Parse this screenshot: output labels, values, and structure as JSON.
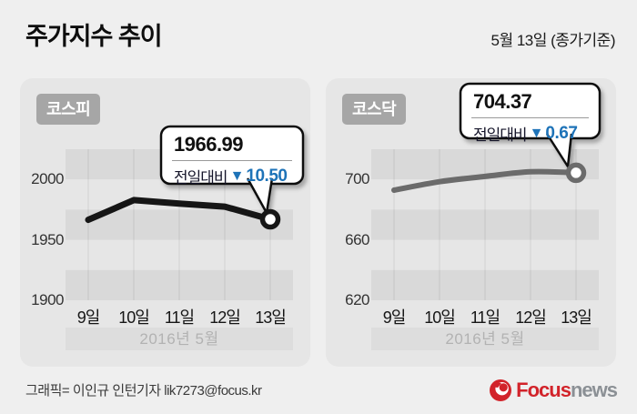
{
  "header": {
    "title": "주가지수 추이",
    "date_note": "5월 13일 (종가기준)"
  },
  "footer": {
    "credit": "그래픽= 이인규 인턴기자 lik7273@focus.kr",
    "logo": {
      "brand_primary": "Focus",
      "brand_secondary": "news"
    }
  },
  "colors": {
    "page_bg": "#efefef",
    "panel_bg": "#e6e6e6",
    "band_dark": "#d9d9d9",
    "month_band": "#dddddd",
    "badge_bg": "#a6a6a6",
    "kospi_line": "#161616",
    "kosdaq_line": "#6b6b6b",
    "down_blue": "#1e73b8",
    "logo_red": "#d2232a",
    "logo_gray": "#8b9095"
  },
  "chart_data": [
    {
      "type": "line",
      "name": "KOSPI",
      "badge_label": "코스피",
      "x": [
        "9일",
        "10일",
        "11일",
        "12일",
        "13일"
      ],
      "values": [
        1966.6,
        1982.9,
        1980.0,
        1977.49,
        1966.99
      ],
      "ylim": [
        1900,
        2025
      ],
      "yticks": [
        2000,
        1950,
        1900
      ],
      "xlabel_period": "2016년 5월",
      "line_color": "#161616",
      "smooth": false,
      "grid": "striped-bands",
      "legend": "none",
      "callout": {
        "value": "1966.99",
        "label": "전일대비",
        "direction": "▼",
        "change": "10.50"
      }
    },
    {
      "type": "line",
      "name": "KOSDAQ",
      "badge_label": "코스닥",
      "x": [
        "9일",
        "10일",
        "11일",
        "12일",
        "13일"
      ],
      "values": [
        692.9,
        698.5,
        702.0,
        705.04,
        704.37
      ],
      "ylim": [
        620,
        720
      ],
      "yticks": [
        700,
        660,
        620
      ],
      "xlabel_period": "2016년 5월",
      "line_color": "#6b6b6b",
      "smooth": true,
      "grid": "striped-bands",
      "legend": "none",
      "callout": {
        "value": "704.37",
        "label": "전일대비",
        "direction": "▼",
        "change": "0.67"
      }
    }
  ]
}
